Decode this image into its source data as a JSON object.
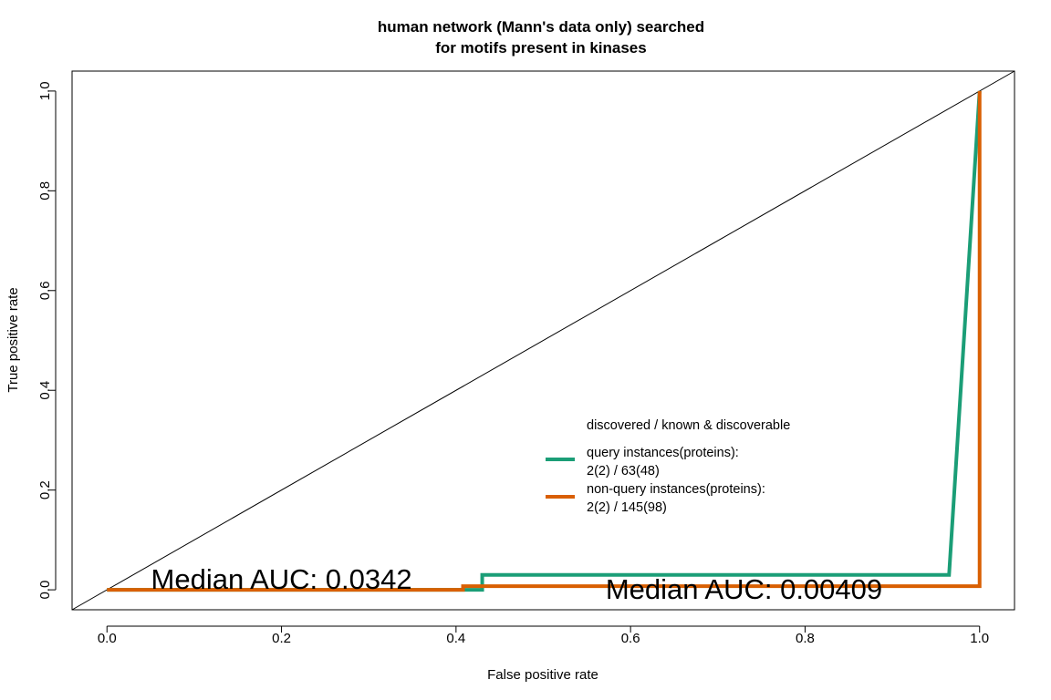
{
  "chart_data": {
    "type": "line",
    "title": [
      "human network (Mann's data only) searched",
      "for motifs present in kinases"
    ],
    "xlabel": "False positive rate",
    "ylabel": "True positive rate",
    "xlim": [
      -0.04,
      1.04
    ],
    "ylim": [
      -0.04,
      1.04
    ],
    "x_ticks": [
      0.0,
      0.2,
      0.4,
      0.6,
      0.8,
      1.0
    ],
    "x_tick_labels": [
      "0.0",
      "0.2",
      "0.4",
      "0.6",
      "0.8",
      "1.0"
    ],
    "y_ticks": [
      0.0,
      0.2,
      0.4,
      0.6,
      0.8,
      1.0
    ],
    "y_tick_labels": [
      "0.0",
      "0.2",
      "0.4",
      "0.6",
      "0.8",
      "1.0"
    ],
    "grid": false,
    "diagonal_reference": {
      "x": [
        -0.04,
        1.04
      ],
      "y": [
        -0.04,
        1.04
      ],
      "color": "#000000"
    },
    "series": [
      {
        "name": "query instances(proteins): 2(2) / 63(48)",
        "color": "#1b9e77",
        "x": [
          0.0,
          0.43,
          0.43,
          0.965,
          1.0
        ],
        "y": [
          0.0,
          0.0,
          0.0298,
          0.0298,
          1.0
        ]
      },
      {
        "name": "non-query instances(proteins): 2(2) / 145(98)",
        "color": "#d95f02",
        "x": [
          0.0,
          0.408,
          0.408,
          1.0,
          1.0
        ],
        "y": [
          0.0,
          0.0,
          0.0073,
          0.0073,
          1.0
        ]
      }
    ],
    "legend": {
      "placement": "center-right",
      "heading": "discovered / known & discoverable",
      "entries": [
        {
          "lines": [
            "query instances(proteins):",
            "2(2) / 63(48)"
          ],
          "color": "#1b9e77"
        },
        {
          "lines": [
            "non-query instances(proteins):",
            "2(2) / 145(98)"
          ],
          "color": "#d95f02"
        }
      ]
    },
    "annotations": [
      {
        "text": "Median AUC: 0.0342",
        "x": 0.2,
        "y": 0.02
      },
      {
        "text": "Median AUC: 0.00409",
        "x": 0.73,
        "y": 0.0
      }
    ]
  }
}
